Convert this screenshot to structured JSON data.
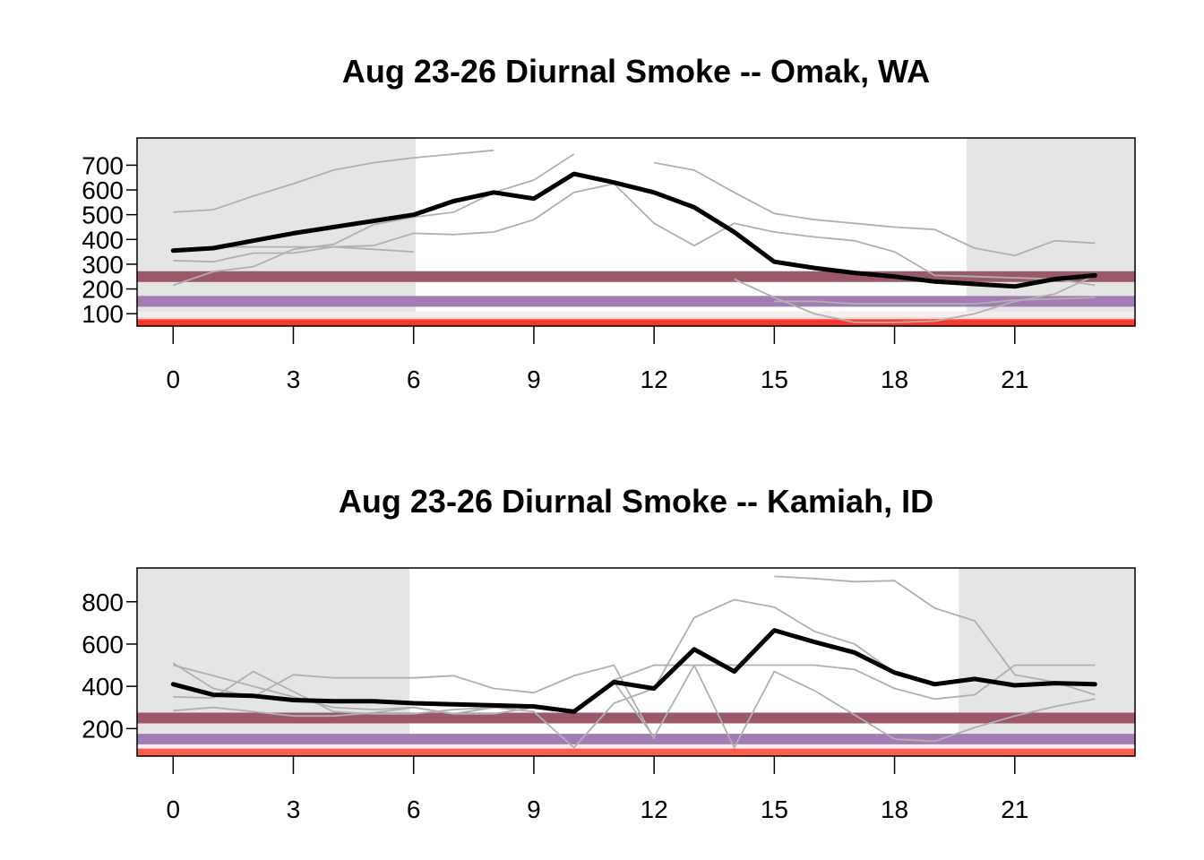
{
  "chart_data": [
    {
      "type": "line",
      "title": "Aug 23-26 Diurnal Smoke -- Omak, WA",
      "xlabel": "",
      "ylabel": "",
      "xlim": [
        -0.9,
        24
      ],
      "ylim": [
        50,
        810
      ],
      "x_ticks": [
        0,
        3,
        6,
        9,
        12,
        15,
        18,
        21
      ],
      "y_ticks": [
        100,
        200,
        300,
        400,
        500,
        600,
        700
      ],
      "night_shading": [
        [
          -0.9,
          6.05
        ],
        [
          19.8,
          24
        ]
      ],
      "aqi_bands": [
        {
          "value": 250,
          "color": "#9B5869"
        },
        {
          "value": 150,
          "color": "#A37CB4"
        },
        {
          "value": 88,
          "color": "#F4ECEF"
        },
        {
          "value": 64,
          "color": "#FFD6D4"
        },
        {
          "value": 57,
          "color": "#FF5E4E"
        },
        {
          "value": 52,
          "color": "#F8342E"
        }
      ],
      "daily_series": [
        {
          "x": [
            0,
            1,
            2,
            3,
            4,
            5,
            6,
            7,
            8
          ],
          "values": [
            510,
            520,
            575,
            625,
            680,
            710,
            730,
            745,
            760
          ]
        },
        {
          "x": [
            0,
            1,
            2,
            3,
            4,
            5,
            6,
            7,
            8,
            9,
            10
          ],
          "values": [
            215,
            270,
            290,
            360,
            380,
            460,
            490,
            510,
            590,
            640,
            745
          ]
        },
        {
          "x": [
            0,
            1,
            2,
            3,
            4,
            5,
            6
          ],
          "values": [
            360,
            370,
            370,
            370,
            370,
            360,
            350
          ]
        },
        {
          "x": [
            0,
            1,
            2,
            3,
            4,
            5,
            6,
            7,
            8,
            9,
            10,
            11,
            12,
            13,
            14,
            15,
            16,
            17,
            18,
            19,
            20,
            21,
            22,
            23
          ],
          "values": [
            315,
            310,
            345,
            345,
            370,
            375,
            425,
            420,
            430,
            480,
            590,
            625,
            465,
            375,
            465,
            430,
            410,
            395,
            350,
            255,
            250,
            245,
            240,
            215
          ]
        },
        {
          "x": [
            12,
            13,
            14,
            15,
            16,
            17,
            18,
            19,
            20,
            21,
            22,
            23
          ],
          "values": [
            710,
            680,
            590,
            505,
            480,
            465,
            450,
            440,
            365,
            335,
            395,
            385
          ]
        },
        {
          "x": [
            14,
            15,
            16,
            17,
            18,
            19,
            20,
            21,
            22,
            23
          ],
          "values": [
            240,
            165,
            100,
            65,
            65,
            70,
            100,
            150,
            180,
            255
          ]
        },
        {
          "x": [
            15,
            16,
            17,
            18,
            19,
            20,
            21,
            22,
            23
          ],
          "values": [
            150,
            150,
            140,
            140,
            140,
            140,
            155,
            160,
            165
          ]
        }
      ],
      "mean_series": {
        "x": [
          0,
          1,
          2,
          3,
          4,
          5,
          6,
          7,
          8,
          9,
          10,
          11,
          12,
          13,
          14,
          15,
          16,
          17,
          18,
          19,
          20,
          21,
          22,
          23
        ],
        "values": [
          355,
          365,
          395,
          425,
          450,
          475,
          500,
          555,
          590,
          565,
          665,
          630,
          590,
          530,
          430,
          310,
          285,
          265,
          250,
          230,
          220,
          210,
          240,
          255
        ]
      }
    },
    {
      "type": "line",
      "title": "Aug 23-26 Diurnal Smoke -- Kamiah, ID",
      "xlabel": "",
      "ylabel": "",
      "xlim": [
        -0.9,
        24
      ],
      "ylim": [
        70,
        960
      ],
      "x_ticks": [
        0,
        3,
        6,
        9,
        12,
        15,
        18,
        21
      ],
      "y_ticks": [
        200,
        400,
        600,
        800
      ],
      "night_shading": [
        [
          -0.9,
          5.9
        ],
        [
          19.6,
          24
        ]
      ],
      "aqi_bands": [
        {
          "value": 250,
          "color": "#9B5869"
        },
        {
          "value": 150,
          "color": "#A37CB4"
        },
        {
          "value": 100,
          "color": "#F4ECEF"
        },
        {
          "value": 80,
          "color": "#FF5E4E"
        }
      ],
      "daily_series": [
        {
          "x": [
            0,
            1,
            2,
            3,
            4,
            5,
            6,
            7,
            8,
            9,
            10,
            11,
            12,
            13,
            14,
            15,
            16,
            17,
            18,
            19,
            20,
            21,
            22,
            23
          ],
          "values": [
            500,
            450,
            400,
            350,
            300,
            290,
            300,
            270,
            300,
            300,
            280,
            430,
            500,
            500,
            500,
            500,
            500,
            480,
            390,
            340,
            360,
            500,
            500,
            500
          ]
        },
        {
          "x": [
            0,
            1,
            2,
            3,
            4,
            5,
            6,
            7,
            8,
            9,
            10,
            11,
            12,
            13,
            14,
            15,
            16,
            17,
            18,
            19,
            20,
            21,
            22,
            23
          ],
          "values": [
            350,
            345,
            470,
            375,
            280,
            270,
            270,
            290,
            300,
            280,
            110,
            320,
            390,
            725,
            810,
            775,
            660,
            600,
            465,
            410,
            440,
            405,
            415,
            410
          ]
        },
        {
          "x": [
            0,
            1,
            2,
            3,
            4,
            5,
            6,
            7,
            8,
            9,
            10,
            11,
            12,
            13,
            14,
            15,
            16,
            17,
            18,
            19,
            20,
            21,
            22,
            23
          ],
          "values": [
            285,
            300,
            280,
            260,
            260,
            275,
            300,
            270,
            270,
            300,
            280,
            420,
            160,
            500,
            110,
            470,
            380,
            265,
            150,
            140,
            205,
            260,
            305,
            340
          ]
        },
        {
          "x": [
            0,
            1,
            2,
            3,
            4,
            5,
            6,
            7,
            8,
            9,
            10,
            11,
            12
          ],
          "values": [
            510,
            390,
            350,
            455,
            440,
            440,
            440,
            450,
            390,
            370,
            450,
            500,
            150
          ]
        },
        {
          "x": [
            15,
            16,
            17,
            18,
            19,
            20,
            21,
            22,
            23
          ],
          "values": [
            920,
            910,
            895,
            900,
            770,
            710,
            455,
            420,
            360
          ]
        }
      ],
      "mean_series": {
        "x": [
          0,
          1,
          2,
          3,
          4,
          5,
          6,
          7,
          8,
          9,
          10,
          11,
          12,
          13,
          14,
          15,
          16,
          17,
          18,
          19,
          20,
          21,
          22,
          23
        ],
        "values": [
          410,
          360,
          355,
          335,
          330,
          330,
          320,
          315,
          310,
          305,
          280,
          420,
          390,
          575,
          470,
          665,
          610,
          560,
          465,
          410,
          435,
          405,
          415,
          410
        ]
      }
    }
  ]
}
